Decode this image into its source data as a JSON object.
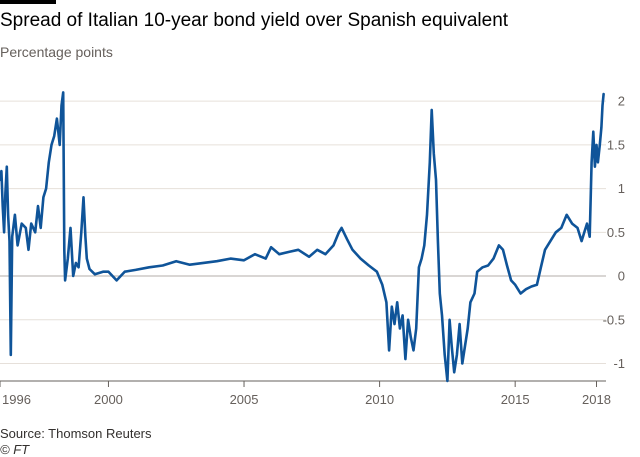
{
  "header": {
    "title": "Spread of Italian 10-year bond yield over Spanish equivalent",
    "subtitle": "Percentage points"
  },
  "footer": {
    "source": "Source: Thomson Reuters",
    "credit": "© FT"
  },
  "colors": {
    "line": "#0f5499",
    "grid": "#e6e0da",
    "zero": "#b3ada8",
    "accent_bar": "#000000"
  },
  "chart_data": {
    "type": "line",
    "title": "Spread of Italian 10-year bond yield over Spanish equivalent",
    "subtitle": "Percentage points",
    "xlabel": "",
    "ylabel": "",
    "xlim": [
      1996.0,
      2018.35
    ],
    "ylim": [
      -1.2,
      2.15
    ],
    "x_ticks": [
      {
        "value": 1996,
        "label": "1996"
      },
      {
        "value": 2000,
        "label": "2000"
      },
      {
        "value": 2005,
        "label": "2005"
      },
      {
        "value": 2010,
        "label": "2010"
      },
      {
        "value": 2015,
        "label": "2015"
      },
      {
        "value": 2018,
        "label": "2018"
      }
    ],
    "y_ticks": [
      {
        "value": 2,
        "label": "2"
      },
      {
        "value": 1.5,
        "label": "1.5"
      },
      {
        "value": 1,
        "label": "1"
      },
      {
        "value": 0.5,
        "label": "0.5"
      },
      {
        "value": 0,
        "label": "0"
      },
      {
        "value": -0.5,
        "label": "-0.5"
      },
      {
        "value": -1,
        "label": "-1"
      }
    ],
    "grid": true,
    "y_axis_position": "right",
    "series": [
      {
        "points": [
          [
            1996.0,
            1.1
          ],
          [
            1996.05,
            1.2
          ],
          [
            1996.1,
            0.8
          ],
          [
            1996.15,
            0.5
          ],
          [
            1996.2,
            0.95
          ],
          [
            1996.25,
            1.25
          ],
          [
            1996.3,
            0.7
          ],
          [
            1996.35,
            0.4
          ],
          [
            1996.4,
            -0.9
          ],
          [
            1996.45,
            0.45
          ],
          [
            1996.55,
            0.7
          ],
          [
            1996.65,
            0.35
          ],
          [
            1996.8,
            0.6
          ],
          [
            1996.95,
            0.55
          ],
          [
            1997.05,
            0.3
          ],
          [
            1997.15,
            0.6
          ],
          [
            1997.3,
            0.5
          ],
          [
            1997.4,
            0.8
          ],
          [
            1997.5,
            0.55
          ],
          [
            1997.6,
            0.9
          ],
          [
            1997.7,
            1.0
          ],
          [
            1997.8,
            1.3
          ],
          [
            1997.9,
            1.5
          ],
          [
            1998.0,
            1.6
          ],
          [
            1998.1,
            1.8
          ],
          [
            1998.2,
            1.5
          ],
          [
            1998.27,
            1.95
          ],
          [
            1998.33,
            2.1
          ],
          [
            1998.37,
            0.3
          ],
          [
            1998.4,
            -0.05
          ],
          [
            1998.5,
            0.2
          ],
          [
            1998.6,
            0.55
          ],
          [
            1998.7,
            0.0
          ],
          [
            1998.8,
            0.15
          ],
          [
            1998.9,
            0.1
          ],
          [
            1999.0,
            0.5
          ],
          [
            1999.08,
            0.9
          ],
          [
            1999.15,
            0.45
          ],
          [
            1999.2,
            0.2
          ],
          [
            1999.3,
            0.08
          ],
          [
            1999.5,
            0.02
          ],
          [
            1999.8,
            0.05
          ],
          [
            2000.0,
            0.05
          ],
          [
            2000.3,
            -0.05
          ],
          [
            2000.6,
            0.05
          ],
          [
            2001.0,
            0.07
          ],
          [
            2001.5,
            0.1
          ],
          [
            2002.0,
            0.12
          ],
          [
            2002.5,
            0.17
          ],
          [
            2003.0,
            0.13
          ],
          [
            2003.5,
            0.15
          ],
          [
            2004.0,
            0.17
          ],
          [
            2004.5,
            0.2
          ],
          [
            2005.0,
            0.18
          ],
          [
            2005.4,
            0.25
          ],
          [
            2005.8,
            0.2
          ],
          [
            2006.0,
            0.33
          ],
          [
            2006.3,
            0.25
          ],
          [
            2006.7,
            0.28
          ],
          [
            2007.0,
            0.3
          ],
          [
            2007.4,
            0.22
          ],
          [
            2007.7,
            0.3
          ],
          [
            2008.0,
            0.25
          ],
          [
            2008.3,
            0.35
          ],
          [
            2008.5,
            0.5
          ],
          [
            2008.6,
            0.55
          ],
          [
            2008.8,
            0.42
          ],
          [
            2009.0,
            0.3
          ],
          [
            2009.3,
            0.2
          ],
          [
            2009.6,
            0.12
          ],
          [
            2009.9,
            0.05
          ],
          [
            2010.1,
            -0.1
          ],
          [
            2010.25,
            -0.3
          ],
          [
            2010.35,
            -0.85
          ],
          [
            2010.45,
            -0.35
          ],
          [
            2010.55,
            -0.55
          ],
          [
            2010.65,
            -0.3
          ],
          [
            2010.75,
            -0.6
          ],
          [
            2010.85,
            -0.45
          ],
          [
            2010.95,
            -0.95
          ],
          [
            2011.05,
            -0.5
          ],
          [
            2011.15,
            -0.7
          ],
          [
            2011.25,
            -0.85
          ],
          [
            2011.35,
            -0.6
          ],
          [
            2011.45,
            0.1
          ],
          [
            2011.55,
            0.2
          ],
          [
            2011.65,
            0.35
          ],
          [
            2011.75,
            0.7
          ],
          [
            2011.85,
            1.3
          ],
          [
            2011.92,
            1.9
          ],
          [
            2012.0,
            1.4
          ],
          [
            2012.08,
            1.1
          ],
          [
            2012.15,
            0.4
          ],
          [
            2012.22,
            -0.2
          ],
          [
            2012.3,
            -0.45
          ],
          [
            2012.4,
            -0.9
          ],
          [
            2012.5,
            -1.2
          ],
          [
            2012.58,
            -0.5
          ],
          [
            2012.66,
            -0.8
          ],
          [
            2012.75,
            -1.1
          ],
          [
            2012.85,
            -0.9
          ],
          [
            2012.95,
            -0.55
          ],
          [
            2013.05,
            -1.0
          ],
          [
            2013.15,
            -0.8
          ],
          [
            2013.25,
            -0.6
          ],
          [
            2013.35,
            -0.3
          ],
          [
            2013.5,
            -0.2
          ],
          [
            2013.6,
            0.05
          ],
          [
            2013.8,
            0.1
          ],
          [
            2014.0,
            0.12
          ],
          [
            2014.2,
            0.2
          ],
          [
            2014.4,
            0.35
          ],
          [
            2014.55,
            0.3
          ],
          [
            2014.7,
            0.12
          ],
          [
            2014.85,
            -0.05
          ],
          [
            2015.0,
            -0.1
          ],
          [
            2015.2,
            -0.2
          ],
          [
            2015.4,
            -0.15
          ],
          [
            2015.6,
            -0.12
          ],
          [
            2015.8,
            -0.1
          ],
          [
            2015.95,
            0.1
          ],
          [
            2016.1,
            0.3
          ],
          [
            2016.3,
            0.4
          ],
          [
            2016.5,
            0.5
          ],
          [
            2016.7,
            0.55
          ],
          [
            2016.9,
            0.7
          ],
          [
            2017.1,
            0.6
          ],
          [
            2017.3,
            0.55
          ],
          [
            2017.45,
            0.4
          ],
          [
            2017.55,
            0.5
          ],
          [
            2017.65,
            0.6
          ],
          [
            2017.75,
            0.45
          ],
          [
            2017.82,
            1.3
          ],
          [
            2017.88,
            1.65
          ],
          [
            2017.94,
            1.25
          ],
          [
            2018.0,
            1.5
          ],
          [
            2018.05,
            1.3
          ],
          [
            2018.12,
            1.5
          ],
          [
            2018.18,
            1.7
          ],
          [
            2018.22,
            1.95
          ],
          [
            2018.26,
            2.08
          ]
        ]
      }
    ]
  }
}
